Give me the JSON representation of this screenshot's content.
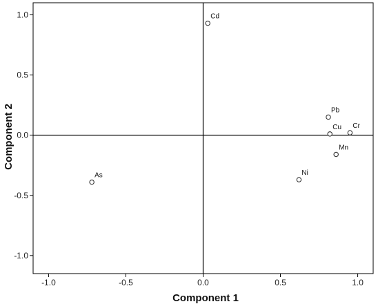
{
  "chart_data": {
    "type": "scatter",
    "xlabel": "Component 1",
    "ylabel": "Component 2",
    "xlim": [
      -1.1,
      1.1
    ],
    "ylim": [
      -1.15,
      1.1
    ],
    "x_ticks": [
      {
        "value": -1.0,
        "label": "-1.0"
      },
      {
        "value": -0.5,
        "label": "-0.5"
      },
      {
        "value": 0.0,
        "label": "0.0"
      },
      {
        "value": 0.5,
        "label": "0.5"
      },
      {
        "value": 1.0,
        "label": "1.0"
      }
    ],
    "y_ticks": [
      {
        "value": 1.0,
        "label": "1.0"
      },
      {
        "value": 0.5,
        "label": "0.5"
      },
      {
        "value": 0.0,
        "label": "0.0"
      },
      {
        "value": -0.5,
        "label": "-0.5"
      },
      {
        "value": -1.0,
        "label": "-1.0"
      }
    ],
    "grid": false,
    "reference_lines": {
      "x": 0,
      "y": 0
    },
    "points": [
      {
        "label": "Cd",
        "x": 0.03,
        "y": 0.93
      },
      {
        "label": "Pb",
        "x": 0.81,
        "y": 0.15
      },
      {
        "label": "Cu",
        "x": 0.82,
        "y": 0.01
      },
      {
        "label": "Cr",
        "x": 0.95,
        "y": 0.02
      },
      {
        "label": "Mn",
        "x": 0.86,
        "y": -0.16
      },
      {
        "label": "Ni",
        "x": 0.62,
        "y": -0.37
      },
      {
        "label": "As",
        "x": -0.72,
        "y": -0.39
      }
    ]
  }
}
